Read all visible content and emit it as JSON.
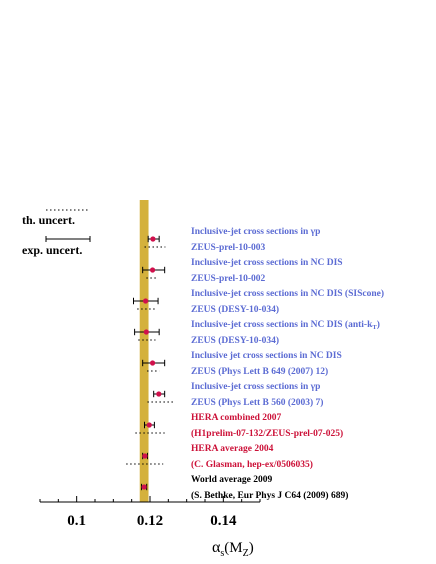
{
  "chart_data": {
    "type": "scatter",
    "title": "",
    "xlabel": "αs(MZ)",
    "xlabel_parts": {
      "main": "α",
      "sub1": "s",
      "paren_open": "(M",
      "sub2": "Z",
      "paren_close": ")"
    },
    "xlim": [
      0.09,
      0.15
    ],
    "xticks": [
      0.1,
      0.12,
      0.14
    ],
    "xtick_labels": [
      "0.1",
      "0.12",
      "0.14"
    ],
    "band": {
      "center": 0.1184,
      "half_width": 0.0012,
      "color": "#d4b13c"
    },
    "legend": {
      "th_label": "th. uncert.",
      "exp_label": "exp. uncert."
    },
    "colors": {
      "marker": "#d0104c",
      "blue_text": "#5b6bd3",
      "red_text": "#cc1138",
      "black_text": "#000000"
    },
    "measurements": [
      {
        "line1": "Inclusive-jet cross sections in γp",
        "line2": "ZEUS-prel-10-003",
        "color_key": "blue",
        "value": 0.1208,
        "exp": [
          0.1195,
          0.1225
        ],
        "th": [
          0.1185,
          0.1242
        ]
      },
      {
        "line1": "Inclusive-jet cross sections in NC DIS",
        "line2": "ZEUS-prel-10-002",
        "color_key": "blue",
        "value": 0.1207,
        "exp": [
          0.118,
          0.124
        ],
        "th": [
          0.119,
          0.1222
        ]
      },
      {
        "line1": "Inclusive-jet cross sections in NC DIS (SIScone)",
        "line2": "ZEUS (DESY-10-034)",
        "color_key": "blue",
        "value": 0.1188,
        "exp": [
          0.1155,
          0.1222
        ],
        "th": [
          0.1165,
          0.1215
        ]
      },
      {
        "line1": "Inclusive-jet cross sections in NC DIS (anti-k",
        "line1_sub": "T",
        "line1_tail": ")",
        "line2": "ZEUS (DESY-10-034)",
        "color_key": "blue",
        "value": 0.119,
        "exp": [
          0.1158,
          0.1225
        ],
        "th": [
          0.1168,
          0.1215
        ]
      },
      {
        "line1": "Inclusive jet cross sections in NC DIS",
        "line2": "ZEUS (Phys Lett B 649 (2007) 12)",
        "color_key": "blue",
        "value": 0.1207,
        "exp": [
          0.118,
          0.124
        ],
        "th": [
          0.1192,
          0.1225
        ]
      },
      {
        "line1": "Inclusive-jet cross sections in γp",
        "line2": "ZEUS (Phys Lett B 560 (2003) 7)",
        "color_key": "blue",
        "value": 0.1224,
        "exp": [
          0.121,
          0.124
        ],
        "th": [
          0.1193,
          0.1268
        ]
      },
      {
        "line1": "HERA combined 2007",
        "line2": "(H1prelim-07-132/ZEUS-prel-07-025)",
        "color_key": "red",
        "value": 0.1198,
        "exp": [
          0.1185,
          0.1212
        ],
        "th": [
          0.116,
          0.124
        ]
      },
      {
        "line1": "HERA average 2004",
        "line2": "(C. Glasman, hep-ex/0506035)",
        "color_key": "red",
        "value": 0.1186,
        "exp": [
          0.118,
          0.1193
        ],
        "th": [
          0.1135,
          0.1236
        ]
      },
      {
        "line1": "World average 2009",
        "line2": "(S. Bethke, Eur Phys J C64 (2009) 689)",
        "color_key": "black",
        "value": 0.1184,
        "exp": [
          0.1177,
          0.1191
        ],
        "th": null
      }
    ]
  }
}
